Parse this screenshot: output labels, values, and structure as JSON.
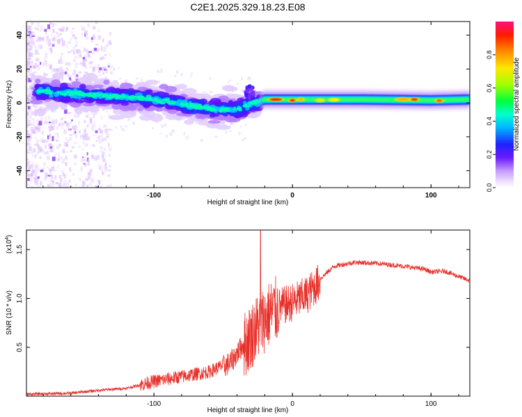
{
  "title": "C2E1.2025.329.18.23.E08",
  "chart_data": [
    {
      "type": "heatmap",
      "title": "C2E1.2025.329.18.23.E08",
      "xlabel": "Height of straight line (km)",
      "ylabel": "Frequency (Hz)",
      "xlim": [
        -192,
        128
      ],
      "ylim": [
        -50,
        48
      ],
      "xticks": [
        -100,
        0,
        100
      ],
      "xtick_labels": [
        "-100",
        "0",
        "100"
      ],
      "yticks": [
        -40,
        -20,
        0,
        20,
        40
      ],
      "ytick_labels": [
        "-40",
        "-20",
        "0",
        "20",
        "40"
      ],
      "colorbar": {
        "label": "Normalized spectral amplitude",
        "range": [
          0,
          1
        ],
        "ticks": [
          0.0,
          0.2,
          0.4,
          0.6,
          0.8
        ],
        "tick_labels": [
          "0.0",
          "0.2",
          "0.4",
          "0.6",
          "0.8"
        ]
      },
      "ridge": [
        {
          "x": -190,
          "f": 7
        },
        {
          "x": -170,
          "f": 6
        },
        {
          "x": -150,
          "f": 5
        },
        {
          "x": -130,
          "f": 4
        },
        {
          "x": -110,
          "f": 3
        },
        {
          "x": -90,
          "f": 1
        },
        {
          "x": -70,
          "f": -2
        },
        {
          "x": -55,
          "f": -4
        },
        {
          "x": -40,
          "f": -4
        },
        {
          "x": -28,
          "f": 0
        },
        {
          "x": -20,
          "f": 2
        },
        {
          "x": 0,
          "f": 2
        },
        {
          "x": 50,
          "f": 2
        },
        {
          "x": 100,
          "f": 1.5
        },
        {
          "x": 128,
          "f": 2
        }
      ]
    },
    {
      "type": "line",
      "xlabel": "Height of straight line (km)",
      "ylabel": "SNR (10 * v/v)",
      "scale_label": "(x10",
      "scale_exp": "4",
      "scale_close": ")",
      "xlim": [
        -192,
        128
      ],
      "ylim": [
        0,
        1.7
      ],
      "xticks": [
        -100,
        0,
        100
      ],
      "xtick_labels": [
        "-100",
        "0",
        "100"
      ],
      "yticks": [
        0.5,
        1.0,
        1.5
      ],
      "ytick_labels": [
        "0.5",
        "1.0",
        "1.5"
      ],
      "color": "#e8302a",
      "envelope": [
        {
          "x": -192,
          "y": 0.02
        },
        {
          "x": -160,
          "y": 0.03
        },
        {
          "x": -140,
          "y": 0.06
        },
        {
          "x": -120,
          "y": 0.08
        },
        {
          "x": -100,
          "y": 0.15
        },
        {
          "x": -80,
          "y": 0.2
        },
        {
          "x": -60,
          "y": 0.25
        },
        {
          "x": -45,
          "y": 0.35
        },
        {
          "x": -35,
          "y": 0.55
        },
        {
          "x": -25,
          "y": 0.75
        },
        {
          "x": -15,
          "y": 0.9
        },
        {
          "x": 0,
          "y": 0.98
        },
        {
          "x": 10,
          "y": 1.05
        },
        {
          "x": 20,
          "y": 1.2
        },
        {
          "x": 30,
          "y": 1.33
        },
        {
          "x": 45,
          "y": 1.37
        },
        {
          "x": 60,
          "y": 1.36
        },
        {
          "x": 80,
          "y": 1.33
        },
        {
          "x": 95,
          "y": 1.3
        },
        {
          "x": 100,
          "y": 1.27
        },
        {
          "x": 110,
          "y": 1.28
        },
        {
          "x": 128,
          "y": 1.18
        }
      ],
      "spike": {
        "x": -23,
        "y": 1.7
      }
    }
  ]
}
